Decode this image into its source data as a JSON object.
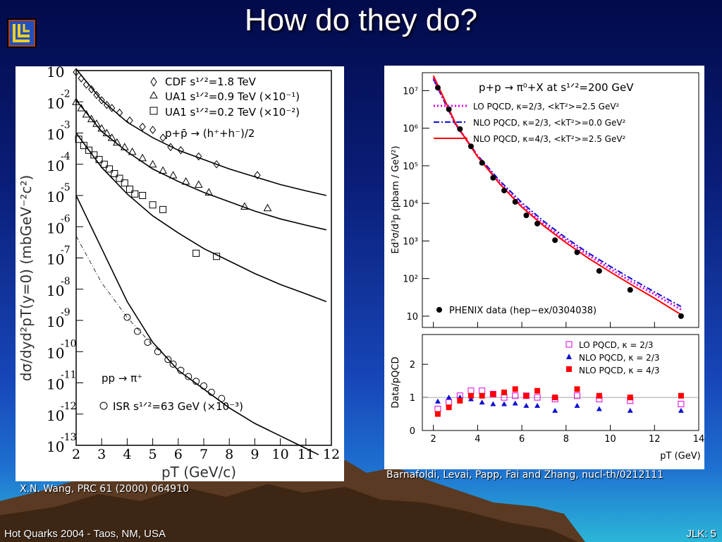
{
  "slide": {
    "title": "How do they do?",
    "caption_left": "X.N. Wang, PRC 61 (2000) 064910",
    "caption_right": "Barnafoldi, Levai, Papp, Fai and Zhang, nucl-th/0212111",
    "footer_left": "Hot Quarks 2004 - Taos, NM, USA",
    "footer_right": "JLK: 5"
  },
  "colors": {
    "lo": "#e000e0",
    "nlo_k0": "#1010d0",
    "nlo_k43": "#ff0000",
    "data": "#000000"
  },
  "chart_data": [
    {
      "type": "scatter",
      "xlabel": "pT (GeV/c)",
      "ylabel": "dσ/dyd²pT(y=0) (mbGeV⁻²c²)",
      "xlim": [
        2,
        12
      ],
      "ylim_exp": [
        -13,
        -1
      ],
      "x_ticks": [
        "2",
        "3",
        "4",
        "5",
        "6",
        "7",
        "8",
        "9",
        "10",
        "11",
        "12"
      ],
      "y_tick_exponents": [
        "-1",
        "-2",
        "-3",
        "-4",
        "-5",
        "-6",
        "-7",
        "-8",
        "-9",
        "-10",
        "-11",
        "-12",
        "-13"
      ],
      "legend": [
        {
          "marker": "diamond",
          "text": "CDF s¹ᐟ²=1.8 TeV"
        },
        {
          "marker": "triangle",
          "text": "UA1 s¹ᐟ²=0.9 TeV (×10⁻¹)"
        },
        {
          "marker": "square",
          "text": "UA1 s¹ᐟ²=0.2 TeV (×10⁻²)"
        },
        {
          "marker": "none",
          "text": "p+p̄ → (h⁺+h⁻)/2"
        }
      ],
      "annotation_reaction": "pp → π⁺",
      "annotation_isr": "ISR s¹ᐟ²=63 GeV (×10⁻³)",
      "series": [
        {
          "marker": "diamond",
          "points": [
            [
              2.0,
              -1.05
            ],
            [
              2.2,
              -1.25
            ],
            [
              2.4,
              -1.45
            ],
            [
              2.6,
              -1.6
            ],
            [
              2.8,
              -1.78
            ],
            [
              3.0,
              -1.95
            ],
            [
              3.2,
              -2.1
            ],
            [
              3.4,
              -2.2
            ],
            [
              3.7,
              -2.35
            ],
            [
              4.1,
              -2.6
            ],
            [
              4.6,
              -2.8
            ],
            [
              5.0,
              -2.9
            ],
            [
              5.4,
              -3.15
            ],
            [
              5.7,
              -3.45
            ],
            [
              6.1,
              -3.55
            ],
            [
              6.8,
              -3.75
            ],
            [
              7.5,
              -4.0
            ],
            [
              9.1,
              -4.35
            ]
          ],
          "curve": [
            [
              2,
              -0.95
            ],
            [
              3,
              -1.95
            ],
            [
              4,
              -2.65
            ],
            [
              5,
              -3.15
            ],
            [
              6,
              -3.55
            ],
            [
              7,
              -3.85
            ],
            [
              8,
              -4.15
            ],
            [
              9,
              -4.4
            ],
            [
              10,
              -4.65
            ],
            [
              11,
              -4.85
            ],
            [
              11.8,
              -5.0
            ]
          ]
        },
        {
          "marker": "triangle",
          "points": [
            [
              2.0,
              -2.0
            ],
            [
              2.2,
              -2.2
            ],
            [
              2.4,
              -2.4
            ],
            [
              2.6,
              -2.55
            ],
            [
              2.8,
              -2.7
            ],
            [
              3.0,
              -2.85
            ],
            [
              3.2,
              -3.0
            ],
            [
              3.4,
              -3.15
            ],
            [
              3.6,
              -3.3
            ],
            [
              3.9,
              -3.45
            ],
            [
              4.2,
              -3.6
            ],
            [
              4.6,
              -3.8
            ],
            [
              5.0,
              -4.0
            ],
            [
              5.4,
              -4.2
            ],
            [
              5.8,
              -4.35
            ],
            [
              6.3,
              -4.55
            ],
            [
              6.8,
              -4.65
            ],
            [
              7.2,
              -4.9
            ],
            [
              8.6,
              -5.35
            ],
            [
              9.5,
              -5.4
            ]
          ],
          "curve": [
            [
              2,
              -1.95
            ],
            [
              3,
              -2.95
            ],
            [
              4,
              -3.6
            ],
            [
              5,
              -4.15
            ],
            [
              6,
              -4.55
            ],
            [
              7,
              -4.9
            ],
            [
              8,
              -5.2
            ],
            [
              9,
              -5.5
            ],
            [
              10,
              -5.75
            ],
            [
              11,
              -5.95
            ],
            [
              11.8,
              -6.1
            ]
          ]
        },
        {
          "marker": "square",
          "points": [
            [
              2.1,
              -3.2
            ],
            [
              2.3,
              -3.4
            ],
            [
              2.5,
              -3.55
            ],
            [
              2.7,
              -3.7
            ],
            [
              2.9,
              -3.85
            ],
            [
              3.1,
              -4.0
            ],
            [
              3.3,
              -4.15
            ],
            [
              3.5,
              -4.3
            ],
            [
              3.7,
              -4.45
            ],
            [
              3.9,
              -4.6
            ],
            [
              4.1,
              -4.8
            ],
            [
              4.3,
              -4.95
            ],
            [
              4.6,
              -5.0
            ],
            [
              5.0,
              -5.3
            ],
            [
              5.4,
              -5.45
            ],
            [
              6.7,
              -6.85
            ],
            [
              7.5,
              -6.95
            ]
          ],
          "curve": [
            [
              2,
              -3.0
            ],
            [
              3,
              -4.1
            ],
            [
              4,
              -4.95
            ],
            [
              5,
              -5.65
            ],
            [
              6,
              -6.2
            ],
            [
              7,
              -6.7
            ],
            [
              8,
              -7.1
            ],
            [
              9,
              -7.5
            ],
            [
              10,
              -7.85
            ],
            [
              11,
              -8.15
            ],
            [
              11.8,
              -8.4
            ]
          ]
        },
        {
          "marker": "circle",
          "points": [
            [
              4.0,
              -8.9
            ],
            [
              4.4,
              -9.35
            ],
            [
              4.8,
              -9.7
            ],
            [
              5.2,
              -10.0
            ],
            [
              5.6,
              -10.25
            ],
            [
              5.8,
              -10.4
            ],
            [
              6.1,
              -10.6
            ],
            [
              6.4,
              -10.8
            ],
            [
              6.7,
              -10.95
            ],
            [
              7.0,
              -11.1
            ],
            [
              7.3,
              -11.3
            ],
            [
              7.7,
              -11.5
            ]
          ],
          "curve": [
            [
              2,
              -5.0
            ],
            [
              3,
              -6.7
            ],
            [
              4,
              -8.4
            ],
            [
              5,
              -9.7
            ],
            [
              6,
              -10.6
            ],
            [
              7,
              -11.2
            ],
            [
              8,
              -11.8
            ],
            [
              9,
              -12.3
            ],
            [
              10,
              -12.7
            ],
            [
              11,
              -13.1
            ],
            [
              11.5,
              -13.3
            ]
          ]
        },
        {
          "marker": "dashdot",
          "points": [],
          "curve": [
            [
              2,
              -6.3
            ],
            [
              3,
              -7.8
            ],
            [
              4,
              -8.9
            ],
            [
              5,
              -9.8
            ],
            [
              5.6,
              -10.2
            ]
          ]
        }
      ]
    },
    {
      "type": "scatter",
      "title": "p+p → π⁰+X at s¹ᐟ²=200 GeV",
      "xlabel": "pT (GeV)",
      "ylabel": "Ed³σ/d³p (pbarn / GeV²)",
      "xlim": [
        1.5,
        14
      ],
      "log_scale": true,
      "ylim": [
        5,
        30000000
      ],
      "x_ticks": [
        "2",
        "4",
        "6",
        "8",
        "10",
        "12",
        "14"
      ],
      "y_ticks": [
        "10",
        "10²",
        "10³",
        "10⁴",
        "10⁵",
        "10⁶",
        "10⁷"
      ],
      "legend": [
        {
          "style": "dotted",
          "color": "#e000e0",
          "text": "LO PQCD, κ=2/3, <kT²>=2.5 GeV²"
        },
        {
          "style": "dashdot",
          "color": "#1010d0",
          "text": "NLO PQCD, κ=2/3, <kT²>=0.0 GeV²"
        },
        {
          "style": "solid",
          "color": "#ff0000",
          "text": "NLO PQCD, κ=4/3, <kT²>=2.5 GeV²"
        },
        {
          "style": "dot",
          "color": "#000000",
          "text": "PHENIX data (hep−ex/0304038)"
        }
      ],
      "phenix": [
        [
          2.2,
          12000000
        ],
        [
          2.7,
          3200000
        ],
        [
          3.2,
          950000
        ],
        [
          3.7,
          330000
        ],
        [
          4.2,
          120000
        ],
        [
          4.7,
          48000
        ],
        [
          5.2,
          22000
        ],
        [
          5.7,
          11000
        ],
        [
          6.2,
          4800
        ],
        [
          6.7,
          2900
        ],
        [
          7.5,
          1050
        ],
        [
          8.5,
          500
        ],
        [
          9.5,
          160
        ],
        [
          10.9,
          50
        ],
        [
          13.2,
          10
        ]
      ],
      "curves": {
        "lo": [
          [
            2.0,
            22000000
          ],
          [
            3,
            1300000
          ],
          [
            4,
            180000
          ],
          [
            5,
            35000
          ],
          [
            6,
            9000
          ],
          [
            7,
            2800
          ],
          [
            8,
            1050
          ],
          [
            9,
            420
          ],
          [
            10,
            180
          ],
          [
            11,
            80
          ],
          [
            12,
            38
          ],
          [
            13.2,
            15
          ]
        ],
        "nlo0": [
          [
            2.0,
            20000000
          ],
          [
            3,
            1250000
          ],
          [
            4,
            190000
          ],
          [
            5,
            40000
          ],
          [
            6,
            10500
          ],
          [
            7,
            3300
          ],
          [
            8,
            1200
          ],
          [
            9,
            480
          ],
          [
            10,
            210
          ],
          [
            11,
            95
          ],
          [
            12,
            44
          ],
          [
            13.2,
            18
          ]
        ],
        "nlo43": [
          [
            2.0,
            25000000
          ],
          [
            3,
            1350000
          ],
          [
            4,
            175000
          ],
          [
            5,
            33000
          ],
          [
            6,
            8000
          ],
          [
            7,
            2500
          ],
          [
            8,
            900
          ],
          [
            9,
            350
          ],
          [
            10,
            150
          ],
          [
            11,
            66
          ],
          [
            12,
            30
          ],
          [
            13.2,
            11
          ]
        ]
      }
    },
    {
      "type": "scatter",
      "xlabel": "pT (GeV)",
      "ylabel": "Data/pQCD",
      "xlim": [
        1.5,
        14
      ],
      "ylim": [
        0,
        2.9
      ],
      "x_ticks": [
        "2",
        "4",
        "6",
        "8",
        "10",
        "12",
        "14"
      ],
      "y_ticks": [
        "0",
        "1",
        "2"
      ],
      "legend": [
        {
          "marker": "open-square",
          "color": "#e000e0",
          "text": "LO PQCD, κ = 2/3"
        },
        {
          "marker": "triangle",
          "color": "#1010d0",
          "text": "NLO PQCD, κ = 2/3"
        },
        {
          "marker": "filled-square",
          "color": "#ff0000",
          "text": "NLO PQCD, κ = 4/3"
        }
      ],
      "series": [
        {
          "name": "LO PQCD, κ = 2/3",
          "x": [
            2.2,
            2.7,
            3.2,
            3.7,
            4.2,
            4.7,
            5.2,
            5.7,
            6.2,
            6.7,
            7.5,
            8.5,
            9.5,
            10.9,
            13.2
          ],
          "values": [
            0.65,
            0.85,
            1.05,
            1.2,
            1.2,
            1.1,
            1.0,
            1.05,
            1.05,
            1.0,
            0.95,
            1.05,
            0.95,
            0.9,
            0.8
          ]
        },
        {
          "name": "NLO PQCD, κ = 2/3",
          "x": [
            2.2,
            2.7,
            3.2,
            3.7,
            4.2,
            4.7,
            5.2,
            5.7,
            6.2,
            6.7,
            7.5,
            8.5,
            9.5,
            10.9,
            13.2
          ],
          "values": [
            0.88,
            1.0,
            1.0,
            0.95,
            0.85,
            0.8,
            0.8,
            0.82,
            0.75,
            0.75,
            0.6,
            0.75,
            0.65,
            0.6,
            0.6
          ]
        },
        {
          "name": "NLO PQCD, κ = 4/3",
          "x": [
            2.2,
            2.7,
            3.2,
            3.7,
            4.2,
            4.7,
            5.2,
            5.7,
            6.2,
            6.7,
            7.5,
            8.5,
            9.5,
            10.9,
            13.2
          ],
          "values": [
            0.5,
            0.7,
            0.9,
            1.05,
            1.05,
            1.1,
            1.15,
            1.25,
            1.05,
            1.2,
            1.0,
            1.25,
            1.05,
            1.0,
            1.05
          ]
        }
      ]
    }
  ]
}
